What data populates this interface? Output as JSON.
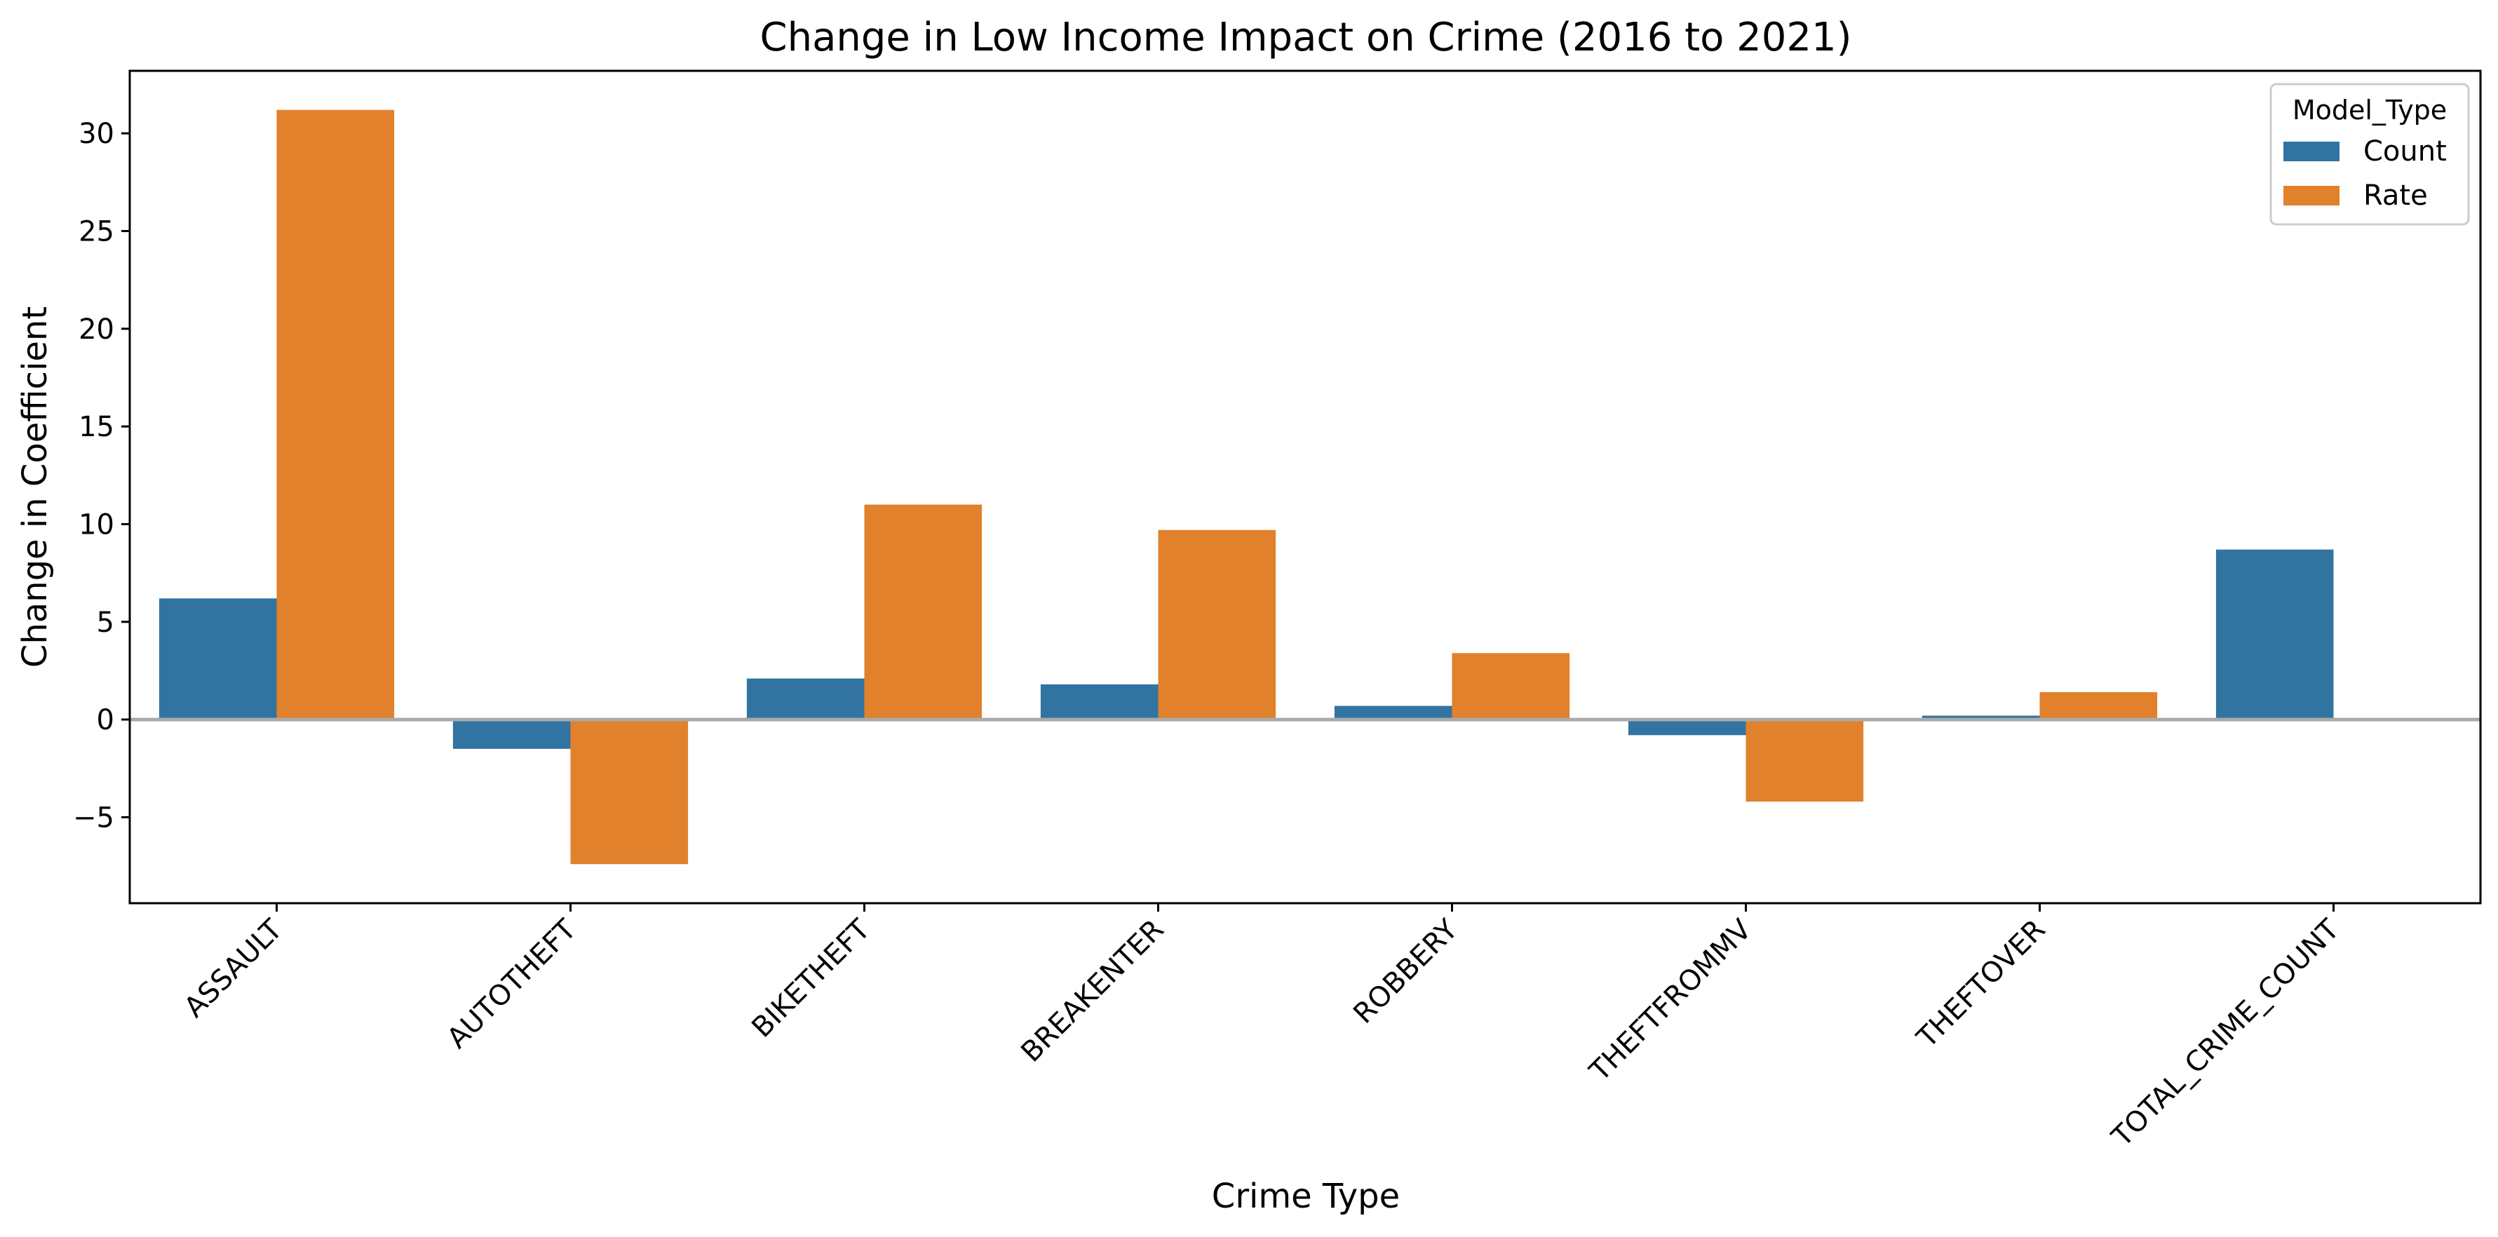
{
  "chart_data": {
    "type": "bar",
    "title": "Change in Low Income Impact on Crime (2016 to 2021)",
    "xlabel": "Crime Type",
    "ylabel": "Change in Coefficient",
    "categories": [
      "ASSAULT",
      "AUTOTHEFT",
      "BIKETHEFT",
      "BREAKENTER",
      "ROBBERY",
      "THEFTFROMMV",
      "THEFTOVER",
      "TOTAL_CRIME_COUNT"
    ],
    "series": [
      {
        "name": "Count",
        "color": "#3274a1",
        "values": [
          6.2,
          -1.5,
          2.1,
          1.8,
          0.7,
          -0.8,
          0.2,
          8.7
        ]
      },
      {
        "name": "Rate",
        "color": "#e1812c",
        "values": [
          31.2,
          -7.4,
          11.0,
          9.7,
          3.4,
          -4.2,
          1.4,
          null
        ]
      }
    ],
    "ylim": [
      -9.4,
      33.2
    ],
    "yticks": [
      -5,
      0,
      5,
      10,
      15,
      20,
      25,
      30
    ],
    "ytick_labels": [
      "−5",
      "0",
      "5",
      "10",
      "15",
      "20",
      "25",
      "30"
    ],
    "zero_line": true,
    "grid": false,
    "legend": {
      "title": "Model_Type",
      "placement": "top-right"
    }
  }
}
